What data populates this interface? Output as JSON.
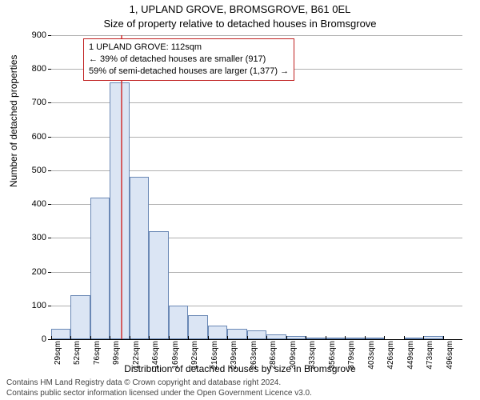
{
  "title_line1": "1, UPLAND GROVE, BROMSGROVE, B61 0EL",
  "title_line2": "Size of property relative to detached houses in Bromsgrove",
  "y_label": "Number of detached properties",
  "x_label": "Distribution of detached houses by size in Bromsgrove",
  "footer_line1": "Contains HM Land Registry data © Crown copyright and database right 2024.",
  "footer_line2": "Contains public sector information licensed under the Open Government Licence v3.0.",
  "chart": {
    "type": "histogram",
    "ylim": [
      0,
      900
    ],
    "ytick_step": 100,
    "background": "#ffffff",
    "grid_color": "#b0b0b0",
    "bar_fill": "#dbe5f4",
    "bar_border": "#6a88b5",
    "marker_color": "#d23030",
    "infobox_border": "#c02020",
    "text_color": "#000000",
    "footer_color": "#444444",
    "title_fontsize_pt": 10,
    "axis_label_fontsize_pt": 9,
    "tick_fontsize_pt": 8,
    "marker_x": 112,
    "bin_start": 29,
    "bin_width": 23.35,
    "bins": [
      {
        "label": "29sqm",
        "value": 30
      },
      {
        "label": "52sqm",
        "value": 130
      },
      {
        "label": "76sqm",
        "value": 420
      },
      {
        "label": "99sqm",
        "value": 760
      },
      {
        "label": "122sqm",
        "value": 480
      },
      {
        "label": "146sqm",
        "value": 320
      },
      {
        "label": "169sqm",
        "value": 100
      },
      {
        "label": "192sqm",
        "value": 70
      },
      {
        "label": "216sqm",
        "value": 40
      },
      {
        "label": "239sqm",
        "value": 30
      },
      {
        "label": "263sqm",
        "value": 25
      },
      {
        "label": "286sqm",
        "value": 15
      },
      {
        "label": "309sqm",
        "value": 10
      },
      {
        "label": "333sqm",
        "value": 5
      },
      {
        "label": "356sqm",
        "value": 5
      },
      {
        "label": "379sqm",
        "value": 3
      },
      {
        "label": "403sqm",
        "value": 3
      },
      {
        "label": "426sqm",
        "value": 0
      },
      {
        "label": "449sqm",
        "value": 3
      },
      {
        "label": "473sqm",
        "value": 10
      },
      {
        "label": "496sqm",
        "value": 0
      }
    ]
  },
  "infobox": {
    "line1": "1 UPLAND GROVE: 112sqm",
    "line2": "← 39% of detached houses are smaller (917)",
    "line3": "59% of semi-detached houses are larger (1,377) →"
  }
}
